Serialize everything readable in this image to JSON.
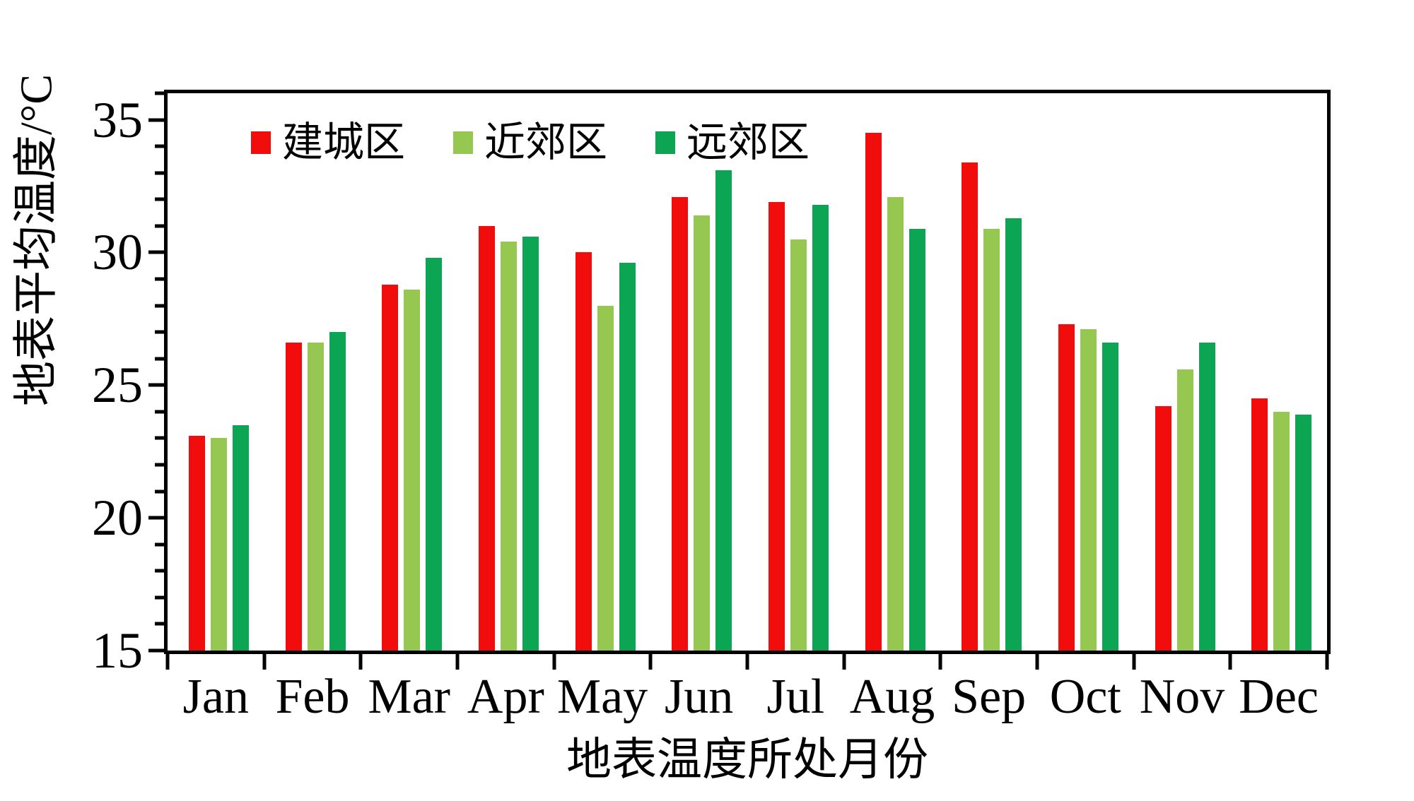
{
  "chart_data": {
    "type": "bar",
    "title": "",
    "categories": [
      "Jan",
      "Feb",
      "Mar",
      "Apr",
      "May",
      "Jun",
      "Jul",
      "Aug",
      "Sep",
      "Oct",
      "Nov",
      "Dec"
    ],
    "series": [
      {
        "name": "建城区",
        "color": "#f20d0d",
        "values": [
          23.1,
          26.6,
          28.8,
          31.0,
          30.0,
          32.1,
          31.9,
          34.5,
          33.4,
          27.3,
          24.2,
          24.5
        ]
      },
      {
        "name": "近郊区",
        "color": "#95c751",
        "values": [
          23.0,
          26.6,
          28.6,
          30.4,
          28.0,
          31.4,
          30.5,
          32.1,
          30.9,
          27.1,
          25.6,
          24.0
        ]
      },
      {
        "name": "远郊区",
        "color": "#0ca553",
        "values": [
          23.5,
          27.0,
          29.8,
          30.6,
          29.6,
          33.1,
          31.8,
          30.9,
          31.3,
          26.6,
          26.6,
          23.9
        ]
      }
    ],
    "xlabel": "地表温度所处月份",
    "ylabel": "地表平均温度/°C",
    "ylim": [
      15,
      36
    ],
    "yticks_major": [
      15,
      20,
      25,
      30,
      35
    ],
    "ytick_minor_step": 1,
    "legend_position": "inside-top-left",
    "grid": false,
    "axis_color": "#000000",
    "background": "#ffffff"
  }
}
